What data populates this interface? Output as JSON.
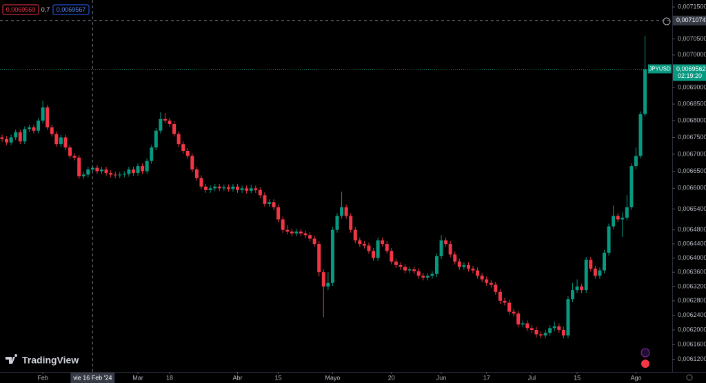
{
  "header": {
    "legend_low": "0,0069569",
    "legend_spread": "0,7",
    "legend_high": "0,0069567",
    "brand": "TradingView"
  },
  "chart_data": {
    "type": "candlestick",
    "symbol": "JPYUSD",
    "log_scale": true,
    "up_color": "#089981",
    "down_color": "#f23645",
    "last_price": 0.0069562,
    "last_price_label": "0,0069562",
    "countdown": "02:19:20",
    "crosshair": {
      "x": 20,
      "y": 0.0071074,
      "x_label": "vie 16 Feb '24",
      "y_label": "0,0071074"
    },
    "ylim": [
      0.006086,
      0.007172
    ],
    "xlim": [
      -0.457,
      148
    ],
    "yticks": [
      {
        "value": 0.00715,
        "label": "0,0071500"
      },
      {
        "value": 0.00705,
        "label": "0,0070500"
      },
      {
        "value": 0.007,
        "label": "0,0070000"
      },
      {
        "value": 0.0069,
        "label": "0,0069000"
      },
      {
        "value": 0.00685,
        "label": "0,0068500"
      },
      {
        "value": 0.0068,
        "label": "0,0068000"
      },
      {
        "value": 0.00675,
        "label": "0,0067500"
      },
      {
        "value": 0.0067,
        "label": "0,0067000"
      },
      {
        "value": 0.00665,
        "label": "0,0066500"
      },
      {
        "value": 0.0066,
        "label": "0,0066000"
      },
      {
        "value": 0.00654,
        "label": "0,0065400"
      },
      {
        "value": 0.00648,
        "label": "0,0064800"
      },
      {
        "value": 0.00644,
        "label": "0,0064400"
      },
      {
        "value": 0.0064,
        "label": "0,0064000"
      },
      {
        "value": 0.00636,
        "label": "0,0063600"
      },
      {
        "value": 0.00632,
        "label": "0,0063200"
      },
      {
        "value": 0.00628,
        "label": "0,0062800"
      },
      {
        "value": 0.00624,
        "label": "0,0062400"
      },
      {
        "value": 0.0062,
        "label": "0,0062000"
      },
      {
        "value": 0.00616,
        "label": "0,0061600"
      },
      {
        "value": 0.00612,
        "label": "0,0061200"
      }
    ],
    "xticks": [
      {
        "value": 9,
        "label": "Feb"
      },
      {
        "value": 30,
        "label": "Mar"
      },
      {
        "value": 37,
        "label": "18"
      },
      {
        "value": 52,
        "label": "Abr"
      },
      {
        "value": 61,
        "label": "15"
      },
      {
        "value": 73,
        "label": "Mayo"
      },
      {
        "value": 86,
        "label": "20"
      },
      {
        "value": 97,
        "label": "Jun"
      },
      {
        "value": 107,
        "label": "17"
      },
      {
        "value": 117,
        "label": "Jul"
      },
      {
        "value": 127,
        "label": "15"
      },
      {
        "value": 140,
        "label": "Ago"
      }
    ],
    "candles": [
      [
        0.00675,
        0.006758,
        0.006737,
        0.006745
      ],
      [
        0.006745,
        0.006753,
        0.006727,
        0.006735
      ],
      [
        0.006735,
        0.006758,
        0.006727,
        0.00675
      ],
      [
        0.00675,
        0.006773,
        0.006742,
        0.006765
      ],
      [
        0.006765,
        0.006773,
        0.00673,
        0.006738
      ],
      [
        0.006738,
        0.006783,
        0.00673,
        0.006775
      ],
      [
        0.006775,
        0.006788,
        0.006767,
        0.00678
      ],
      [
        0.00678,
        0.006788,
        0.006762,
        0.00677
      ],
      [
        0.00677,
        0.006808,
        0.006762,
        0.0068
      ],
      [
        0.0068,
        0.00686,
        0.006792,
        0.00684
      ],
      [
        0.00684,
        0.006848,
        0.006772,
        0.00678
      ],
      [
        0.00678,
        0.006788,
        0.006752,
        0.00676
      ],
      [
        0.00676,
        0.006768,
        0.006722,
        0.00673
      ],
      [
        0.00673,
        0.006758,
        0.006722,
        0.00675
      ],
      [
        0.00675,
        0.006758,
        0.006712,
        0.00672
      ],
      [
        0.00672,
        0.006728,
        0.006687,
        0.006695
      ],
      [
        0.006695,
        0.006703,
        0.006682,
        0.00669
      ],
      [
        0.00669,
        0.006698,
        0.006627,
        0.006635
      ],
      [
        0.006635,
        0.006648,
        0.006627,
        0.00664
      ],
      [
        0.00664,
        0.006663,
        0.006632,
        0.006655
      ],
      [
        0.006655,
        0.006668,
        0.006647,
        0.00666
      ],
      [
        0.00666,
        0.006668,
        0.006642,
        0.00665
      ],
      [
        0.00665,
        0.006663,
        0.006642,
        0.006655
      ],
      [
        0.006655,
        0.006663,
        0.006637,
        0.006645
      ],
      [
        0.006645,
        0.006653,
        0.006632,
        0.00664
      ],
      [
        0.00664,
        0.006648,
        0.00663,
        0.006638
      ],
      [
        0.006638,
        0.006648,
        0.00663,
        0.00664
      ],
      [
        0.00664,
        0.00665,
        0.006632,
        0.006642
      ],
      [
        0.006642,
        0.006663,
        0.006634,
        0.006655
      ],
      [
        0.006655,
        0.006663,
        0.006637,
        0.006645
      ],
      [
        0.006645,
        0.006673,
        0.006637,
        0.006665
      ],
      [
        0.006665,
        0.006673,
        0.006642,
        0.00665
      ],
      [
        0.00665,
        0.006688,
        0.006642,
        0.00668
      ],
      [
        0.00668,
        0.006728,
        0.006672,
        0.00672
      ],
      [
        0.00672,
        0.006778,
        0.006712,
        0.00677
      ],
      [
        0.00677,
        0.006825,
        0.006762,
        0.006805
      ],
      [
        0.006805,
        0.006823,
        0.006792,
        0.0068
      ],
      [
        0.0068,
        0.006808,
        0.006782,
        0.00679
      ],
      [
        0.00679,
        0.006798,
        0.006752,
        0.00676
      ],
      [
        0.00676,
        0.006768,
        0.006722,
        0.00673
      ],
      [
        0.00673,
        0.006738,
        0.006702,
        0.00671
      ],
      [
        0.00671,
        0.006718,
        0.006687,
        0.006695
      ],
      [
        0.006695,
        0.006703,
        0.006647,
        0.006655
      ],
      [
        0.006655,
        0.006663,
        0.006622,
        0.00663
      ],
      [
        0.00663,
        0.006638,
        0.006597,
        0.006605
      ],
      [
        0.006605,
        0.006613,
        0.006587,
        0.006595
      ],
      [
        0.006595,
        0.006608,
        0.006587,
        0.0066
      ],
      [
        0.0066,
        0.006613,
        0.006592,
        0.006605
      ],
      [
        0.006605,
        0.006613,
        0.006592,
        0.0066
      ],
      [
        0.0066,
        0.006611,
        0.006592,
        0.006603
      ],
      [
        0.006603,
        0.006611,
        0.00659,
        0.006598
      ],
      [
        0.006598,
        0.006613,
        0.00659,
        0.006605
      ],
      [
        0.006605,
        0.006613,
        0.006587,
        0.006595
      ],
      [
        0.006595,
        0.006608,
        0.006587,
        0.0066
      ],
      [
        0.0066,
        0.006608,
        0.006585,
        0.006593
      ],
      [
        0.006593,
        0.00661,
        0.006585,
        0.0066
      ],
      [
        0.0066,
        0.006608,
        0.006587,
        0.006595
      ],
      [
        0.006595,
        0.006603,
        0.006572,
        0.00658
      ],
      [
        0.00658,
        0.006588,
        0.006547,
        0.006555
      ],
      [
        0.006555,
        0.006568,
        0.006547,
        0.00656
      ],
      [
        0.00656,
        0.006568,
        0.006537,
        0.006545
      ],
      [
        0.006545,
        0.006553,
        0.006502,
        0.00651
      ],
      [
        0.00651,
        0.006518,
        0.006472,
        0.00648
      ],
      [
        0.00648,
        0.006493,
        0.006467,
        0.006475
      ],
      [
        0.006475,
        0.006483,
        0.006462,
        0.00647
      ],
      [
        0.00647,
        0.006483,
        0.006462,
        0.006475
      ],
      [
        0.006475,
        0.006483,
        0.006462,
        0.00647
      ],
      [
        0.00647,
        0.006478,
        0.006457,
        0.006465
      ],
      [
        0.006465,
        0.006473,
        0.006447,
        0.006455
      ],
      [
        0.006455,
        0.006463,
        0.006432,
        0.00644
      ],
      [
        0.00644,
        0.006448,
        0.006348,
        0.00636
      ],
      [
        0.00636,
        0.006368,
        0.006235,
        0.00632
      ],
      [
        0.00632,
        0.00636,
        0.00631,
        0.00633
      ],
      [
        0.00633,
        0.006488,
        0.006322,
        0.00648
      ],
      [
        0.00648,
        0.006528,
        0.006472,
        0.00652
      ],
      [
        0.00652,
        0.00659,
        0.006512,
        0.006545
      ],
      [
        0.006545,
        0.006553,
        0.006512,
        0.00652
      ],
      [
        0.00652,
        0.006528,
        0.006472,
        0.00648
      ],
      [
        0.00648,
        0.006488,
        0.006442,
        0.00645
      ],
      [
        0.00645,
        0.006458,
        0.006432,
        0.00644
      ],
      [
        0.00644,
        0.006448,
        0.006427,
        0.006435
      ],
      [
        0.006435,
        0.006443,
        0.006412,
        0.00642
      ],
      [
        0.00642,
        0.006428,
        0.006392,
        0.0064
      ],
      [
        0.0064,
        0.006458,
        0.006392,
        0.00645
      ],
      [
        0.00645,
        0.006458,
        0.006432,
        0.00644
      ],
      [
        0.00644,
        0.006448,
        0.006412,
        0.00642
      ],
      [
        0.00642,
        0.006428,
        0.006382,
        0.00639
      ],
      [
        0.00639,
        0.006398,
        0.006372,
        0.00638
      ],
      [
        0.00638,
        0.006388,
        0.006367,
        0.006375
      ],
      [
        0.006375,
        0.006383,
        0.006357,
        0.006365
      ],
      [
        0.006365,
        0.006376,
        0.006357,
        0.006368
      ],
      [
        0.006368,
        0.006376,
        0.006355,
        0.006363
      ],
      [
        0.006363,
        0.006371,
        0.006342,
        0.00635
      ],
      [
        0.00635,
        0.006358,
        0.006337,
        0.006345
      ],
      [
        0.006345,
        0.006358,
        0.006337,
        0.00635
      ],
      [
        0.00635,
        0.006363,
        0.006342,
        0.006355
      ],
      [
        0.006355,
        0.006413,
        0.006347,
        0.006405
      ],
      [
        0.006405,
        0.006465,
        0.006397,
        0.00645
      ],
      [
        0.00645,
        0.006458,
        0.006432,
        0.00644
      ],
      [
        0.00644,
        0.006448,
        0.006402,
        0.00641
      ],
      [
        0.00641,
        0.006418,
        0.006382,
        0.00639
      ],
      [
        0.00639,
        0.006398,
        0.006367,
        0.006375
      ],
      [
        0.006375,
        0.006388,
        0.006367,
        0.00638
      ],
      [
        0.00638,
        0.006388,
        0.006362,
        0.00637
      ],
      [
        0.00637,
        0.006378,
        0.006357,
        0.006365
      ],
      [
        0.006365,
        0.006373,
        0.006342,
        0.00635
      ],
      [
        0.00635,
        0.006358,
        0.006332,
        0.00634
      ],
      [
        0.00634,
        0.006348,
        0.006322,
        0.00633
      ],
      [
        0.00633,
        0.006338,
        0.006317,
        0.006325
      ],
      [
        0.006325,
        0.006333,
        0.006297,
        0.006305
      ],
      [
        0.006305,
        0.006313,
        0.006272,
        0.00628
      ],
      [
        0.00628,
        0.006288,
        0.006267,
        0.006275
      ],
      [
        0.006275,
        0.006283,
        0.006242,
        0.00625
      ],
      [
        0.00625,
        0.006258,
        0.006237,
        0.006245
      ],
      [
        0.006245,
        0.006253,
        0.006207,
        0.006215
      ],
      [
        0.006215,
        0.006226,
        0.006207,
        0.006218
      ],
      [
        0.006218,
        0.006226,
        0.006197,
        0.006205
      ],
      [
        0.006205,
        0.006213,
        0.006192,
        0.0062
      ],
      [
        0.0062,
        0.006208,
        0.00618,
        0.006188
      ],
      [
        0.006188,
        0.006196,
        0.006177,
        0.006185
      ],
      [
        0.006185,
        0.0062,
        0.006177,
        0.006192
      ],
      [
        0.006192,
        0.006213,
        0.006184,
        0.006205
      ],
      [
        0.006205,
        0.006223,
        0.006197,
        0.00621
      ],
      [
        0.00621,
        0.006218,
        0.006192,
        0.0062
      ],
      [
        0.0062,
        0.006208,
        0.006177,
        0.006185
      ],
      [
        0.006185,
        0.006293,
        0.006177,
        0.006285
      ],
      [
        0.006285,
        0.00633,
        0.006277,
        0.00631
      ],
      [
        0.00631,
        0.00634,
        0.006302,
        0.00632
      ],
      [
        0.00632,
        0.006328,
        0.006302,
        0.00631
      ],
      [
        0.00631,
        0.006403,
        0.006302,
        0.006395
      ],
      [
        0.006395,
        0.006403,
        0.006362,
        0.00637
      ],
      [
        0.00637,
        0.006378,
        0.006342,
        0.00635
      ],
      [
        0.00635,
        0.006373,
        0.006342,
        0.006365
      ],
      [
        0.006365,
        0.006423,
        0.006357,
        0.006415
      ],
      [
        0.006415,
        0.006498,
        0.006407,
        0.00649
      ],
      [
        0.00649,
        0.00655,
        0.006482,
        0.00652
      ],
      [
        0.00652,
        0.006528,
        0.006502,
        0.00651
      ],
      [
        0.00651,
        0.00653,
        0.00646,
        0.006515
      ],
      [
        0.006515,
        0.00658,
        0.006507,
        0.006545
      ],
      [
        0.006545,
        0.006673,
        0.006537,
        0.006665
      ],
      [
        0.006665,
        0.00672,
        0.006655,
        0.006695
      ],
      [
        0.006695,
        0.006828,
        0.006687,
        0.00682
      ],
      [
        0.00682,
        0.00706,
        0.006812,
        0.006956
      ]
    ]
  }
}
